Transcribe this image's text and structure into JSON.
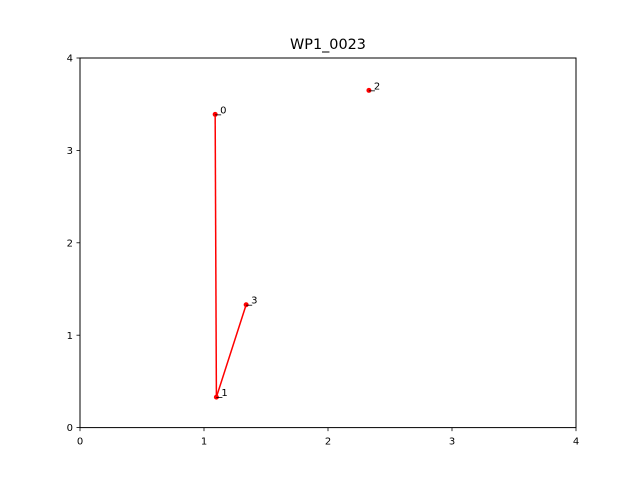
{
  "chart_data": {
    "type": "scatter",
    "title": "WP1_0023",
    "xlabel": "",
    "ylabel": "",
    "xlim": [
      0,
      4
    ],
    "ylim": [
      0,
      4
    ],
    "xticks": [
      0,
      1,
      2,
      3,
      4
    ],
    "yticks": [
      0,
      1,
      2,
      3,
      4
    ],
    "grid": false,
    "color": "#ff0000",
    "points": [
      {
        "label": "0",
        "x": 1.09,
        "y": 3.39
      },
      {
        "label": "1",
        "x": 1.1,
        "y": 0.33
      },
      {
        "label": "2",
        "x": 2.33,
        "y": 3.65
      },
      {
        "label": "3",
        "x": 1.34,
        "y": 1.33
      }
    ],
    "path": [
      {
        "from": "0",
        "to": "1"
      },
      {
        "from": "1",
        "to": "3"
      }
    ]
  }
}
